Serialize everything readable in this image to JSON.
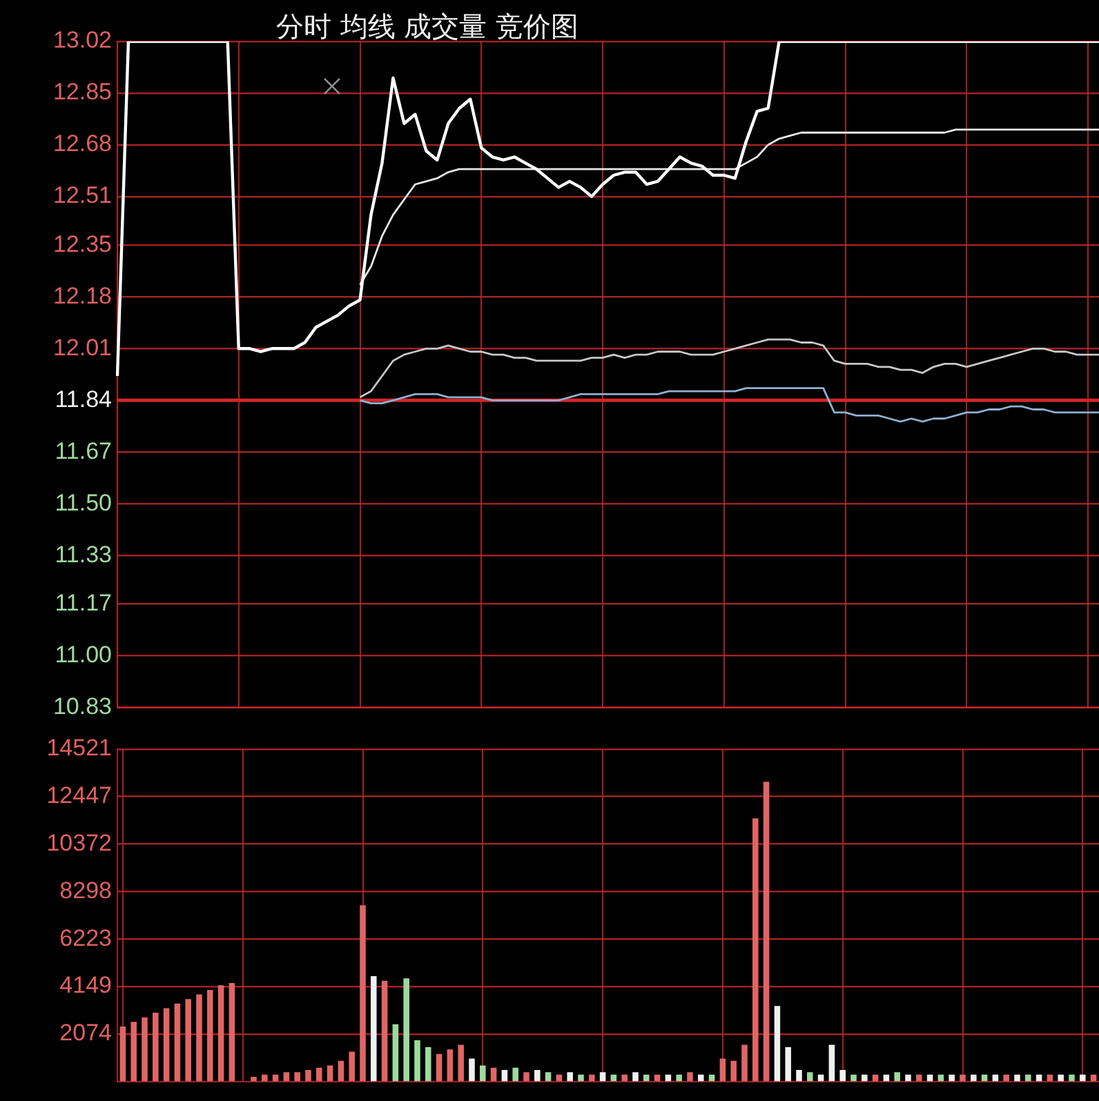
{
  "chart_data": [
    {
      "type": "line",
      "title": "分时 均线 成交量 竞价图",
      "categories": [
        null,
        null,
        null,
        null,
        null,
        null,
        null,
        null,
        null,
        null,
        null,
        null,
        null,
        null,
        null,
        null,
        null,
        null,
        null,
        null,
        null,
        null,
        null,
        null,
        null,
        null,
        null,
        null,
        null,
        null,
        null,
        null,
        null,
        null,
        null,
        null,
        null,
        null,
        null,
        null,
        null,
        null,
        null,
        null,
        null,
        null,
        null,
        null,
        null,
        null,
        null,
        null,
        null,
        null,
        null,
        null,
        null,
        null,
        null,
        null,
        null,
        null,
        null,
        null,
        null,
        null,
        null,
        null,
        null,
        null,
        null,
        null,
        null,
        null,
        null,
        null,
        null,
        null,
        null,
        null,
        null,
        null,
        null,
        null,
        null,
        null,
        null,
        null,
        null,
        null
      ],
      "series": [
        {
          "color": "#ffffff",
          "values": [
            11.92,
            13.02,
            13.02,
            13.02,
            13.02,
            13.02,
            13.02,
            13.02,
            13.02,
            13.02,
            13.02,
            12.01,
            12.01,
            12.0,
            12.01,
            12.01,
            12.01,
            12.03,
            12.08,
            12.1,
            12.12,
            12.15,
            12.17,
            12.45,
            12.62,
            12.9,
            12.75,
            12.78,
            12.66,
            12.63,
            12.75,
            12.8,
            12.83,
            12.67,
            12.64,
            12.63,
            12.64,
            12.62,
            12.6,
            12.57,
            12.54,
            12.56,
            12.54,
            12.51,
            12.55,
            12.58,
            12.59,
            12.59,
            12.55,
            12.56,
            12.6,
            12.64,
            12.62,
            12.61,
            12.58,
            12.58,
            12.57,
            12.69,
            12.79,
            12.8,
            13.02,
            13.02,
            13.02,
            13.02,
            13.02,
            13.02,
            13.02,
            13.02,
            13.02,
            13.02,
            13.02,
            13.02,
            13.02,
            13.02,
            13.02,
            13.02,
            13.02,
            13.02,
            13.02,
            13.02,
            13.02,
            13.02,
            13.02,
            13.02,
            13.02,
            13.02,
            13.02,
            13.02,
            13.02,
            13.02
          ]
        },
        {
          "color": "#e8e8e8",
          "values": [
            null,
            null,
            null,
            null,
            null,
            null,
            null,
            null,
            null,
            null,
            null,
            null,
            null,
            null,
            null,
            null,
            null,
            null,
            null,
            null,
            null,
            null,
            12.22,
            12.28,
            12.38,
            12.45,
            12.5,
            12.55,
            12.56,
            12.57,
            12.59,
            12.6,
            12.6,
            12.6,
            12.6,
            12.6,
            12.6,
            12.6,
            12.6,
            12.6,
            12.6,
            12.6,
            12.6,
            12.6,
            12.6,
            12.6,
            12.6,
            12.6,
            12.6,
            12.6,
            12.6,
            12.6,
            12.6,
            12.6,
            12.6,
            12.6,
            12.6,
            12.62,
            12.64,
            12.68,
            12.7,
            12.71,
            12.72,
            12.72,
            12.72,
            12.72,
            12.72,
            12.72,
            12.72,
            12.72,
            12.72,
            12.72,
            12.72,
            12.72,
            12.72,
            12.72,
            12.73,
            12.73,
            12.73,
            12.73,
            12.73,
            12.73,
            12.73,
            12.73,
            12.73,
            12.73,
            12.73,
            12.73,
            12.73,
            12.73
          ]
        },
        {
          "color": "#c8c8c8",
          "values": [
            null,
            null,
            null,
            null,
            null,
            null,
            null,
            null,
            null,
            null,
            null,
            null,
            null,
            null,
            null,
            null,
            null,
            null,
            null,
            null,
            null,
            null,
            11.85,
            11.87,
            11.92,
            11.97,
            11.99,
            12.0,
            12.01,
            12.01,
            12.02,
            12.01,
            12.0,
            12.0,
            11.99,
            11.99,
            11.98,
            11.98,
            11.97,
            11.97,
            11.97,
            11.97,
            11.97,
            11.98,
            11.98,
            11.99,
            11.98,
            11.99,
            11.99,
            12.0,
            12.0,
            12.0,
            11.99,
            11.99,
            11.99,
            12.0,
            12.01,
            12.02,
            12.03,
            12.04,
            12.04,
            12.04,
            12.03,
            12.03,
            12.02,
            11.97,
            11.96,
            11.96,
            11.96,
            11.95,
            11.95,
            11.94,
            11.94,
            11.93,
            11.95,
            11.96,
            11.96,
            11.95,
            11.96,
            11.97,
            11.98,
            11.99,
            12.0,
            12.01,
            12.01,
            12.0,
            12.0,
            11.99,
            11.99,
            11.99
          ]
        },
        {
          "color": "#8fb0d0",
          "values": [
            null,
            null,
            null,
            null,
            null,
            null,
            null,
            null,
            null,
            null,
            null,
            null,
            null,
            null,
            null,
            null,
            null,
            null,
            null,
            null,
            null,
            null,
            11.84,
            11.83,
            11.83,
            11.84,
            11.85,
            11.86,
            11.86,
            11.86,
            11.85,
            11.85,
            11.85,
            11.85,
            11.84,
            11.84,
            11.84,
            11.84,
            11.84,
            11.84,
            11.84,
            11.85,
            11.86,
            11.86,
            11.86,
            11.86,
            11.86,
            11.86,
            11.86,
            11.86,
            11.87,
            11.87,
            11.87,
            11.87,
            11.87,
            11.87,
            11.87,
            11.88,
            11.88,
            11.88,
            11.88,
            11.88,
            11.88,
            11.88,
            11.88,
            11.8,
            11.8,
            11.79,
            11.79,
            11.79,
            11.78,
            11.77,
            11.78,
            11.77,
            11.78,
            11.78,
            11.79,
            11.8,
            11.8,
            11.81,
            11.81,
            11.82,
            11.82,
            11.81,
            11.81,
            11.8,
            11.8,
            11.8,
            11.8,
            11.8
          ]
        }
      ],
      "ylim": [
        10.83,
        13.02
      ],
      "yticks": [
        13.02,
        12.85,
        12.68,
        12.51,
        12.35,
        12.18,
        12.01,
        11.84,
        11.67,
        {
          "value": 11.5,
          "label": "11.50"
        },
        11.33,
        11.17,
        {
          "value": 11,
          "label": "11.00"
        },
        10.83
      ],
      "ref_lines": [
        {
          "axis": "y",
          "value": 11.84,
          "color": "#d02828"
        }
      ],
      "grid": true,
      "tick_labels": "y",
      "line_style": "solid"
    },
    {
      "type": "bar",
      "categories": [
        null,
        null,
        null,
        null,
        null,
        null,
        null,
        null,
        null,
        null,
        null,
        null,
        null,
        null,
        null,
        null,
        null,
        null,
        null,
        null,
        null,
        null,
        null,
        null,
        null,
        null,
        null,
        null,
        null,
        null,
        null,
        null,
        null,
        null,
        null,
        null,
        null,
        null,
        null,
        null,
        null,
        null,
        null,
        null,
        null,
        null,
        null,
        null,
        null,
        null,
        null,
        null,
        null,
        null,
        null,
        null,
        null,
        null,
        null,
        null,
        null,
        null,
        null,
        null,
        null,
        null,
        null,
        null,
        null,
        null,
        null,
        null,
        null,
        null,
        null,
        null,
        null,
        null,
        null,
        null,
        null,
        null,
        null,
        null,
        null,
        null,
        null,
        null,
        null,
        null
      ],
      "values": [
        2400,
        2600,
        2800,
        3000,
        3200,
        3400,
        3600,
        3800,
        4000,
        4200,
        4300,
        0,
        200,
        300,
        300,
        400,
        400,
        500,
        600,
        700,
        900,
        1300,
        7700,
        4600,
        4400,
        2500,
        4500,
        1800,
        1500,
        1200,
        1400,
        1600,
        1000,
        700,
        600,
        500,
        600,
        400,
        500,
        400,
        300,
        400,
        300,
        300,
        400,
        300,
        300,
        400,
        300,
        300,
        300,
        300,
        400,
        300,
        300,
        1000,
        900,
        1600,
        11500,
        13100,
        3300,
        1500,
        500,
        400,
        300,
        1600,
        500,
        300,
        300,
        300,
        300,
        400,
        300,
        300,
        300,
        300,
        300,
        300,
        300,
        300,
        300,
        300,
        300,
        300,
        300,
        300,
        300,
        300,
        300,
        300
      ],
      "colors": [
        "#e06666",
        "#e06666",
        "#e06666",
        "#e06666",
        "#e06666",
        "#e06666",
        "#e06666",
        "#e06666",
        "#e06666",
        "#e06666",
        "#e06666",
        "#e06666",
        "#e06666",
        "#e06666",
        "#e06666",
        "#e06666",
        "#e06666",
        "#e06666",
        "#e06666",
        "#e06666",
        "#e06666",
        "#e06666",
        "#e06666",
        "#f0f0f0",
        "#e06666",
        "#9ed99e",
        "#9ed99e",
        "#9ed99e",
        "#9ed99e",
        "#e06666",
        "#e06666",
        "#e06666",
        "#f0f0f0",
        "#9ed99e",
        "#e06666",
        "#f0f0f0",
        "#9ed99e",
        "#e06666",
        "#f0f0f0",
        "#9ed99e",
        "#e06666",
        "#f0f0f0",
        "#9ed99e",
        "#e06666",
        "#f0f0f0",
        "#9ed99e",
        "#e06666",
        "#f0f0f0",
        "#9ed99e",
        "#e06666",
        "#f0f0f0",
        "#9ed99e",
        "#e06666",
        "#f0f0f0",
        "#9ed99e",
        "#e06666",
        "#e06666",
        "#e06666",
        "#e06666",
        "#e06666",
        "#f0f0f0",
        "#f0f0f0",
        "#f0f0f0",
        "#9ed99e",
        "#f0f0f0",
        "#f0f0f0",
        "#f0f0f0",
        "#9ed99e",
        "#f0f0f0",
        "#e06666",
        "#f0f0f0",
        "#9ed99e",
        "#f0f0f0",
        "#e06666",
        "#f0f0f0",
        "#9ed99e",
        "#f0f0f0",
        "#e06666",
        "#f0f0f0",
        "#9ed99e",
        "#f0f0f0",
        "#e06666",
        "#f0f0f0",
        "#9ed99e",
        "#f0f0f0",
        "#e06666",
        "#f0f0f0",
        "#9ed99e",
        "#f0f0f0",
        "#e06666"
      ],
      "ylim": [
        0,
        14521
      ],
      "yticks": [
        14521,
        12447,
        10372,
        8298,
        6223,
        4149,
        2074
      ],
      "grid": true,
      "tick_labels": "y"
    }
  ]
}
